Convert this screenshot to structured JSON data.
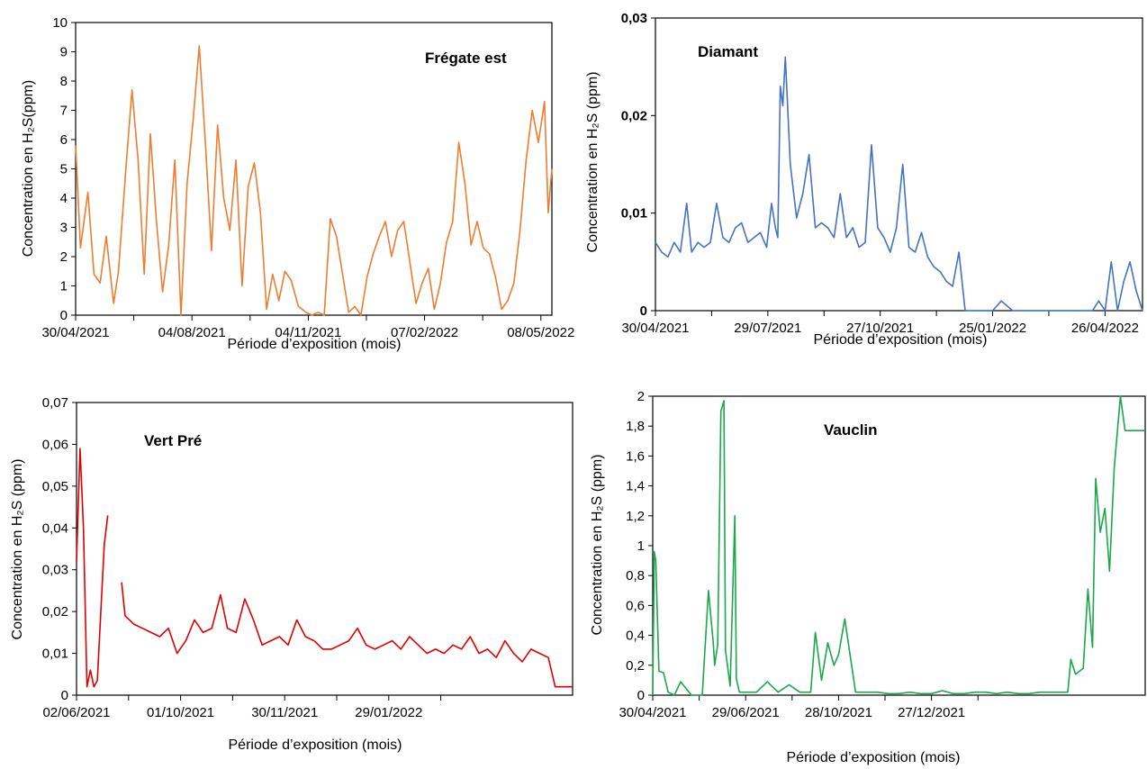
{
  "chart_data": [
    {
      "type": "line",
      "title": "Frégate est",
      "xlabel": "Période d’exposition (mois)",
      "ylabel": "Concentration en H₂S(ppm)",
      "ylim": [
        0,
        10
      ],
      "yticks": [
        "0",
        "1",
        "2",
        "3",
        "4",
        "5",
        "6",
        "7",
        "8",
        "9",
        "10"
      ],
      "xticks": [
        "30/04/2021",
        "04/08/2021",
        "04/11/2021",
        "07/02/2022",
        "08/05/2022"
      ],
      "xlim": [
        "2022-04-30",
        "2022-05-24"
      ],
      "color": "#ED7D31",
      "grid": false,
      "series": [
        {
          "x": [
            "2021-04-30",
            "2021-05-04",
            "2021-05-10",
            "2021-05-15",
            "2021-05-20",
            "2021-05-25",
            "2021-05-31",
            "2021-06-04",
            "2021-06-10",
            "2021-06-15",
            "2021-06-20",
            "2021-06-25",
            "2021-06-30",
            "2021-07-05",
            "2021-07-10",
            "2021-07-15",
            "2021-07-20",
            "2021-07-25",
            "2021-07-30",
            "2021-08-04",
            "2021-08-09",
            "2021-08-14",
            "2021-08-19",
            "2021-08-24",
            "2021-08-29",
            "2021-09-03",
            "2021-09-08",
            "2021-09-13",
            "2021-09-18",
            "2021-09-23",
            "2021-09-28",
            "2021-10-03",
            "2021-10-08",
            "2021-10-13",
            "2021-10-18",
            "2021-10-23",
            "2021-10-29",
            "2021-11-04",
            "2021-11-09",
            "2021-11-14",
            "2021-11-19",
            "2021-11-24",
            "2021-11-29",
            "2021-12-04",
            "2021-12-09",
            "2021-12-14",
            "2021-12-19",
            "2021-12-24",
            "2021-12-29",
            "2022-01-03",
            "2022-01-08",
            "2022-01-13",
            "2022-01-18",
            "2022-01-23",
            "2022-01-28",
            "2022-02-02",
            "2022-02-07",
            "2022-02-12",
            "2022-02-17",
            "2022-02-22",
            "2022-02-27",
            "2022-03-04",
            "2022-03-09",
            "2022-03-14",
            "2022-03-19",
            "2022-03-24",
            "2022-03-29",
            "2022-04-03",
            "2022-04-08",
            "2022-04-13",
            "2022-04-18",
            "2022-04-23",
            "2022-04-28",
            "2022-05-03",
            "2022-05-08",
            "2022-05-13",
            "2022-05-18",
            "2022-05-21",
            "2022-05-24"
          ],
          "y": [
            5.8,
            2.3,
            4.2,
            1.4,
            1.1,
            2.7,
            0.4,
            1.5,
            5.0,
            7.7,
            5.3,
            1.4,
            6.2,
            3.2,
            0.8,
            2.4,
            5.3,
            0.0,
            4.5,
            6.7,
            9.2,
            5.9,
            2.2,
            6.5,
            4.0,
            2.9,
            5.3,
            1.0,
            4.4,
            5.2,
            3.5,
            0.2,
            1.4,
            0.5,
            1.5,
            1.2,
            0.3,
            0.1,
            0.0,
            0.1,
            0.0,
            3.3,
            2.7,
            1.4,
            0.1,
            0.3,
            0.0,
            1.3,
            2.1,
            2.7,
            3.2,
            2.0,
            2.9,
            3.2,
            1.8,
            0.4,
            1.1,
            1.6,
            0.2,
            1.1,
            2.5,
            3.2,
            5.9,
            4.5,
            2.4,
            3.2,
            2.3,
            2.1,
            1.3,
            0.2,
            0.5,
            1.1,
            2.9,
            5.3,
            7.0,
            5.9,
            7.3,
            3.5,
            5.0
          ]
        }
      ]
    },
    {
      "type": "line",
      "title": "Diamant",
      "xlabel": "Période d’exposition (mois)",
      "ylabel": "Concentration en H₂S (ppm)",
      "ylim": [
        0,
        0.03
      ],
      "yticks": [
        "0",
        "0,01",
        "0,02",
        "0,03"
      ],
      "xticks": [
        "30/04/2021",
        "29/07/2021",
        "27/10/2021",
        "25/01/2022",
        "26/04/2022"
      ],
      "xlim": [
        "2021-04-30",
        "2022-05-25"
      ],
      "color": "#4472C4",
      "grid": false,
      "series": [
        {
          "x": [
            "2021-04-30",
            "2021-05-05",
            "2021-05-10",
            "2021-05-15",
            "2021-05-20",
            "2021-05-25",
            "2021-05-29",
            "2021-06-03",
            "2021-06-08",
            "2021-06-13",
            "2021-06-18",
            "2021-06-23",
            "2021-06-28",
            "2021-07-03",
            "2021-07-08",
            "2021-07-13",
            "2021-07-18",
            "2021-07-23",
            "2021-07-28",
            "2021-08-01",
            "2021-08-04",
            "2021-08-06",
            "2021-08-08",
            "2021-08-10",
            "2021-08-12",
            "2021-08-16",
            "2021-08-21",
            "2021-08-26",
            "2021-08-31",
            "2021-09-05",
            "2021-09-10",
            "2021-09-15",
            "2021-09-20",
            "2021-09-25",
            "2021-09-30",
            "2021-10-05",
            "2021-10-10",
            "2021-10-15",
            "2021-10-20",
            "2021-10-25",
            "2021-10-30",
            "2021-11-04",
            "2021-11-09",
            "2021-11-14",
            "2021-11-19",
            "2021-11-24",
            "2021-11-29",
            "2021-12-04",
            "2021-12-09",
            "2021-12-14",
            "2021-12-19",
            "2021-12-24",
            "2021-12-29",
            "2022-01-03",
            "2022-01-08",
            "2022-01-13",
            "2022-01-18",
            "2022-01-25",
            "2022-02-01",
            "2022-02-10",
            "2022-03-01",
            "2022-04-01",
            "2022-04-10",
            "2022-04-15",
            "2022-04-20",
            "2022-04-25",
            "2022-04-30",
            "2022-05-05",
            "2022-05-10",
            "2022-05-15",
            "2022-05-20",
            "2022-05-25"
          ],
          "y": [
            0.007,
            0.006,
            0.0055,
            0.007,
            0.006,
            0.011,
            0.006,
            0.007,
            0.0065,
            0.007,
            0.011,
            0.0075,
            0.007,
            0.0085,
            0.009,
            0.007,
            0.0075,
            0.008,
            0.0065,
            0.011,
            0.0085,
            0.0075,
            0.023,
            0.021,
            0.026,
            0.015,
            0.0095,
            0.012,
            0.016,
            0.0085,
            0.009,
            0.0085,
            0.0075,
            0.012,
            0.0075,
            0.0085,
            0.0065,
            0.007,
            0.017,
            0.0085,
            0.0075,
            0.006,
            0.0085,
            0.015,
            0.0065,
            0.006,
            0.008,
            0.0055,
            0.0045,
            0.004,
            0.003,
            0.0025,
            0.006,
            0.0,
            0.0,
            0.0,
            0.0,
            0.0,
            0.001,
            0.0,
            0.0,
            0.0,
            0.0,
            0.0,
            0.001,
            0.0,
            0.005,
            0.0,
            0.003,
            0.005,
            0.002,
            0.0
          ]
        }
      ]
    },
    {
      "type": "line",
      "title": "Vert Pré",
      "xlabel": "Période d’exposition (mois)",
      "ylabel": "Concentration en H₂S (ppm)",
      "ylim": [
        0,
        0.07
      ],
      "yticks": [
        "0",
        "0,01",
        "0,02",
        "0,03",
        "0,04",
        "0,05",
        "0,06",
        "0,07"
      ],
      "xticks": [
        "02/06/2021",
        "01/10/2021",
        "30/11/2021",
        "29/01/2022"
      ],
      "xlim": [
        "2021-06-02",
        "2022-03-15"
      ],
      "color": "#E00000",
      "grid": false,
      "series": [
        {
          "x": [
            "2021-06-02",
            "2021-06-04",
            "2021-06-06",
            "2021-06-08",
            "2021-06-10",
            "2021-06-12",
            "2021-06-14",
            "2021-06-16",
            "2021-06-18",
            "2021-06-20"
          ],
          "y": [
            0.032,
            0.059,
            0.04,
            0.002,
            0.006,
            0.002,
            0.0035,
            0.02,
            0.036,
            0.043
          ]
        },
        {
          "x": [
            "2021-06-28",
            "2021-06-30",
            "2021-07-05",
            "2021-07-10",
            "2021-07-15",
            "2021-07-20",
            "2021-07-25",
            "2021-07-30",
            "2021-08-04",
            "2021-08-09",
            "2021-08-14",
            "2021-08-19",
            "2021-08-24",
            "2021-08-28",
            "2021-09-02",
            "2021-09-07",
            "2021-09-12",
            "2021-09-17",
            "2021-09-22",
            "2021-09-27",
            "2021-10-02",
            "2021-10-07",
            "2021-10-12",
            "2021-10-17",
            "2021-10-22",
            "2021-10-27",
            "2021-11-01",
            "2021-11-06",
            "2021-11-11",
            "2021-11-16",
            "2021-11-21",
            "2021-11-26",
            "2021-12-01",
            "2021-12-06",
            "2021-12-11",
            "2021-12-16",
            "2021-12-21",
            "2021-12-26",
            "2021-12-31",
            "2022-01-05",
            "2022-01-10",
            "2022-01-15",
            "2022-01-20",
            "2022-01-25",
            "2022-01-30",
            "2022-02-04",
            "2022-02-09",
            "2022-02-14",
            "2022-02-19",
            "2022-02-24",
            "2022-03-01",
            "2022-03-05",
            "2022-03-10",
            "2022-03-15"
          ],
          "y": [
            0.027,
            0.019,
            0.017,
            0.016,
            0.015,
            0.014,
            0.016,
            0.01,
            0.013,
            0.018,
            0.015,
            0.016,
            0.024,
            0.016,
            0.015,
            0.023,
            0.018,
            0.012,
            0.013,
            0.014,
            0.012,
            0.018,
            0.014,
            0.013,
            0.011,
            0.011,
            0.012,
            0.013,
            0.016,
            0.012,
            0.011,
            0.012,
            0.013,
            0.011,
            0.014,
            0.012,
            0.01,
            0.011,
            0.01,
            0.012,
            0.011,
            0.014,
            0.01,
            0.011,
            0.009,
            0.013,
            0.01,
            0.008,
            0.011,
            0.01,
            0.009,
            0.002,
            0.002,
            0.002
          ]
        }
      ]
    },
    {
      "type": "line",
      "title": "Vauclin",
      "xlabel": "Période d’exposition (mois)",
      "ylabel": "Concentration en H₂S (ppm)",
      "ylim": [
        0,
        2
      ],
      "yticks": [
        "0",
        "0,2",
        "0,4",
        "0,6",
        "0,8",
        "1",
        "1,2",
        "1,4",
        "1,6",
        "1,8",
        "2"
      ],
      "xticks": [
        "30/04/2021",
        "29/06/2021",
        "28/10/2021",
        "27/12/2021"
      ],
      "xlim": [
        "2021-04-30",
        "2022-03-14"
      ],
      "color": "#1AA84B",
      "grid": false,
      "series": [
        {
          "x": [
            "2021-04-30",
            "2021-05-01",
            "2021-05-02",
            "2021-05-04",
            "2021-05-07",
            "2021-05-10",
            "2021-05-14",
            "2021-05-18",
            "2021-05-25",
            "2021-06-01",
            "2021-06-05",
            "2021-06-08",
            "2021-06-09",
            "2021-06-11",
            "2021-06-13",
            "2021-06-15",
            "2021-06-16",
            "2021-06-19",
            "2021-06-22",
            "2021-06-23",
            "2021-06-25",
            "2021-06-29",
            "2021-07-06",
            "2021-07-13",
            "2021-07-20",
            "2021-07-27",
            "2021-08-03",
            "2021-08-06",
            "2021-08-10",
            "2021-08-13",
            "2021-08-17",
            "2021-08-21",
            "2021-08-25",
            "2021-08-28",
            "2021-09-01",
            "2021-09-08",
            "2021-09-15",
            "2021-09-22",
            "2021-09-29",
            "2021-10-06",
            "2021-10-13",
            "2021-10-20",
            "2021-10-27",
            "2021-11-03",
            "2021-11-10",
            "2021-11-17",
            "2021-11-24",
            "2021-12-01",
            "2021-12-08",
            "2021-12-15",
            "2021-12-22",
            "2021-12-29",
            "2022-01-05",
            "2022-01-12",
            "2022-01-19",
            "2022-01-23",
            "2022-01-25",
            "2022-01-28",
            "2022-02-02",
            "2022-02-05",
            "2022-02-08",
            "2022-02-10",
            "2022-02-13",
            "2022-02-16",
            "2022-02-19",
            "2022-02-22",
            "2022-02-26",
            "2022-03-01",
            "2022-03-04",
            "2022-03-08",
            "2022-03-10",
            "2022-03-14"
          ],
          "y": [
            0.0,
            0.96,
            0.9,
            0.16,
            0.15,
            0.02,
            0.0,
            0.09,
            0.0,
            0.0,
            0.7,
            0.36,
            0.2,
            0.34,
            1.9,
            1.97,
            0.3,
            0.06,
            1.2,
            0.11,
            0.02,
            0.02,
            0.02,
            0.09,
            0.02,
            0.07,
            0.02,
            0.02,
            0.02,
            0.42,
            0.1,
            0.35,
            0.2,
            0.27,
            0.51,
            0.02,
            0.02,
            0.02,
            0.01,
            0.01,
            0.02,
            0.01,
            0.01,
            0.03,
            0.01,
            0.01,
            0.02,
            0.02,
            0.01,
            0.02,
            0.01,
            0.01,
            0.02,
            0.02,
            0.02,
            0.02,
            0.24,
            0.14,
            0.18,
            0.71,
            0.32,
            1.45,
            1.09,
            1.25,
            0.83,
            1.52,
            2.0,
            1.77,
            1.77,
            1.77,
            1.77,
            1.77
          ]
        }
      ]
    }
  ]
}
